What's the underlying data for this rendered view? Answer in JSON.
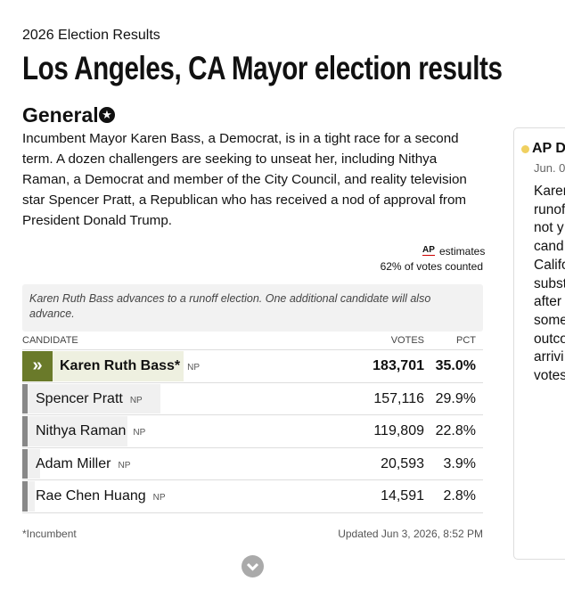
{
  "header": {
    "kicker": "2026 Election Results",
    "title": "Los Angeles, CA Mayor election results"
  },
  "section": {
    "title": "General",
    "description": "Incumbent Mayor Karen Bass, a Democrat, is in a tight race for a second term. A dozen challengers are seeking to unseat her, including Nithya Raman, a Democrat and member of the City Council, and reality television star Spencer Pratt, a Republican who has received a nod of approval from President Donald Trump."
  },
  "estimates": {
    "logo": "AP",
    "label": "estimates",
    "counted": "62% of votes counted"
  },
  "note": "Karen Ruth Bass advances to a runoff election. One additional candidate will also advance.",
  "table": {
    "columns": [
      "CANDIDATE",
      "VOTES",
      "PCT"
    ],
    "rows": [
      {
        "name": "Karen Ruth Bass*",
        "party": "NP",
        "votes": "183,701",
        "pct": "35.0%",
        "advancing": true
      },
      {
        "name": "Spencer Pratt",
        "party": "NP",
        "votes": "157,116",
        "pct": "29.9%",
        "advancing": false
      },
      {
        "name": "Nithya Raman",
        "party": "NP",
        "votes": "119,809",
        "pct": "22.8%",
        "advancing": false
      },
      {
        "name": "Adam Miller",
        "party": "NP",
        "votes": "20,593",
        "pct": "3.9%",
        "advancing": false
      },
      {
        "name": "Rae Chen Huang",
        "party": "NP",
        "votes": "14,591",
        "pct": "2.8%",
        "advancing": false
      }
    ]
  },
  "footer": {
    "note": "*Incumbent",
    "updated": "Updated Jun 3, 2026, 8:52 PM"
  },
  "side_panel": {
    "title": "AP De",
    "date": "Jun. 0",
    "lines": [
      "Karen",
      "runof",
      "not y",
      "cand",
      "Califo",
      "subst",
      "after",
      "some",
      "outco",
      "arrivi",
      "votes"
    ]
  }
}
